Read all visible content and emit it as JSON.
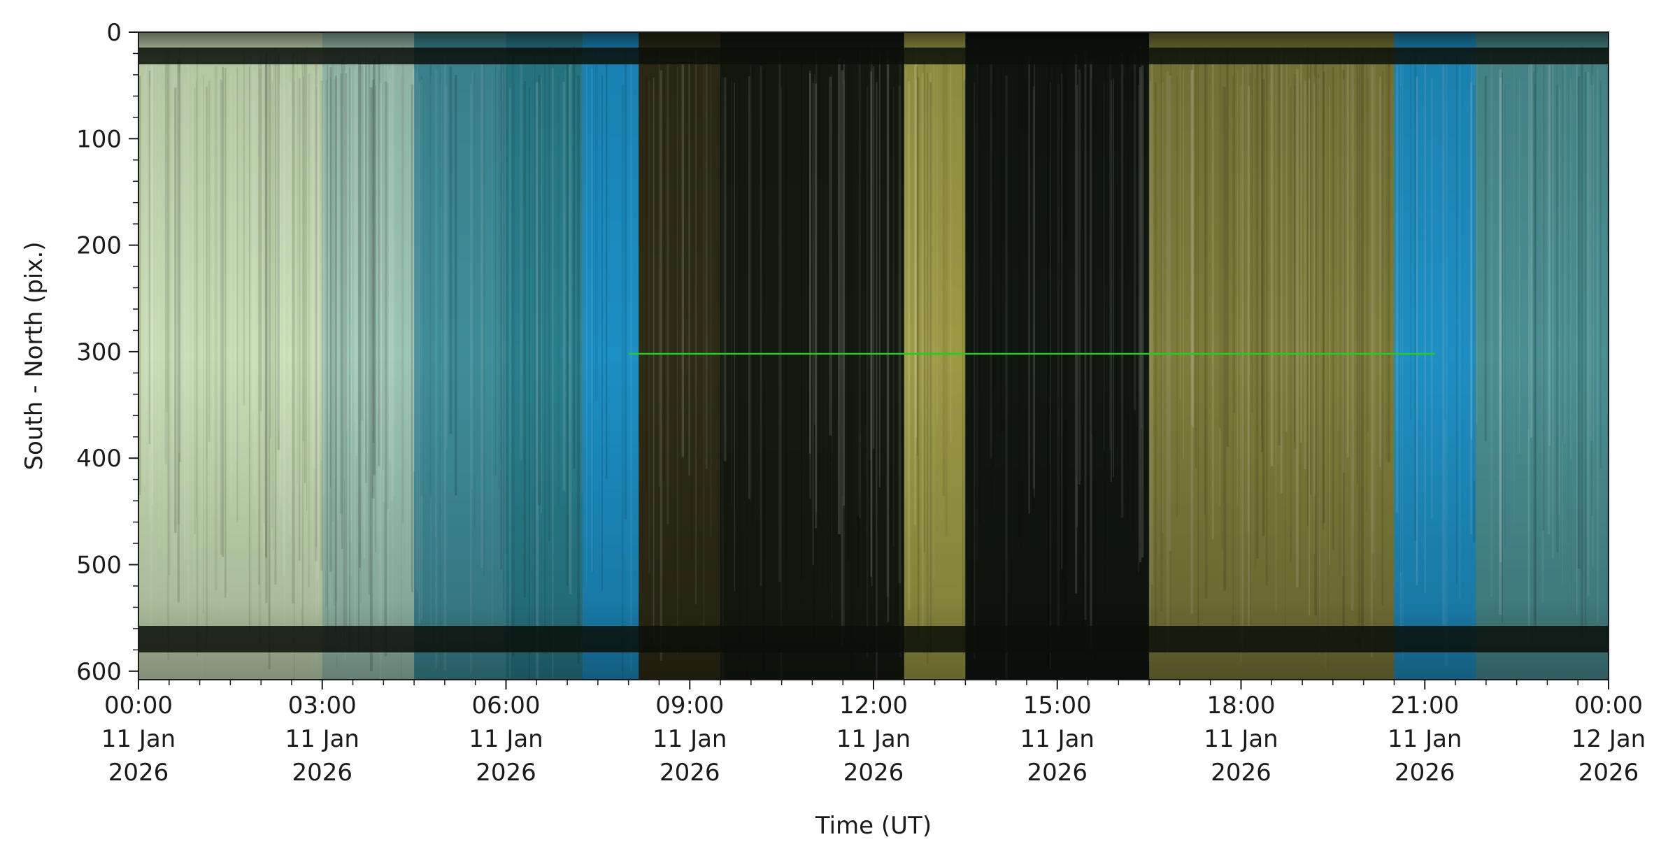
{
  "chart_data": {
    "type": "heatmap",
    "xlabel": "Time (UT)",
    "ylabel": "South - North (pix.)",
    "xlim": [
      "2026-01-11T00:00",
      "2026-01-12T00:00"
    ],
    "ylim": [
      608,
      0
    ],
    "x_ticks": [
      {
        "time": "2026-01-11T00:00",
        "lines": [
          "00:00",
          "11 Jan",
          "2026"
        ]
      },
      {
        "time": "2026-01-11T03:00",
        "lines": [
          "03:00",
          "11 Jan",
          "2026"
        ]
      },
      {
        "time": "2026-01-11T06:00",
        "lines": [
          "06:00",
          "11 Jan",
          "2026"
        ]
      },
      {
        "time": "2026-01-11T09:00",
        "lines": [
          "09:00",
          "11 Jan",
          "2026"
        ]
      },
      {
        "time": "2026-01-11T12:00",
        "lines": [
          "12:00",
          "11 Jan",
          "2026"
        ]
      },
      {
        "time": "2026-01-11T15:00",
        "lines": [
          "15:00",
          "11 Jan",
          "2026"
        ]
      },
      {
        "time": "2026-01-11T18:00",
        "lines": [
          "18:00",
          "11 Jan",
          "2026"
        ]
      },
      {
        "time": "2026-01-11T21:00",
        "lines": [
          "21:00",
          "11 Jan",
          "2026"
        ]
      },
      {
        "time": "2026-01-12T00:00",
        "lines": [
          "00:00",
          "12 Jan",
          "2026"
        ]
      }
    ],
    "y_ticks": [
      0,
      100,
      200,
      300,
      400,
      500,
      600
    ],
    "grid": false,
    "bands": [
      {
        "start": "2026-01-11T00:00",
        "end": "2026-01-11T03:00",
        "color": "#c7dcb4"
      },
      {
        "start": "2026-01-11T03:00",
        "end": "2026-01-11T04:30",
        "color": "#9cc5b2"
      },
      {
        "start": "2026-01-11T04:30",
        "end": "2026-01-11T06:00",
        "color": "#3f8d99"
      },
      {
        "start": "2026-01-11T06:00",
        "end": "2026-01-11T07:15",
        "color": "#2a7f8d"
      },
      {
        "start": "2026-01-11T07:15",
        "end": "2026-01-11T08:10",
        "color": "#1c8fc4"
      },
      {
        "start": "2026-01-11T08:10",
        "end": "2026-01-11T09:30",
        "color": "#2e2c16"
      },
      {
        "start": "2026-01-11T09:30",
        "end": "2026-01-11T12:30",
        "color": "#141a10"
      },
      {
        "start": "2026-01-11T12:30",
        "end": "2026-01-11T13:30",
        "color": "#9c9a45"
      },
      {
        "start": "2026-01-11T13:30",
        "end": "2026-01-11T16:30",
        "color": "#101610"
      },
      {
        "start": "2026-01-11T16:30",
        "end": "2026-01-11T20:30",
        "color": "#7e7c3a"
      },
      {
        "start": "2026-01-11T20:30",
        "end": "2026-01-11T21:50",
        "color": "#1e8fc2"
      },
      {
        "start": "2026-01-11T21:50",
        "end": "2026-01-12T00:00",
        "color": "#4a8f92"
      }
    ],
    "horizontal_line": {
      "y": 302,
      "start": "2026-01-11T08:00",
      "end": "2026-01-11T21:10",
      "color": "#22cc22"
    }
  }
}
